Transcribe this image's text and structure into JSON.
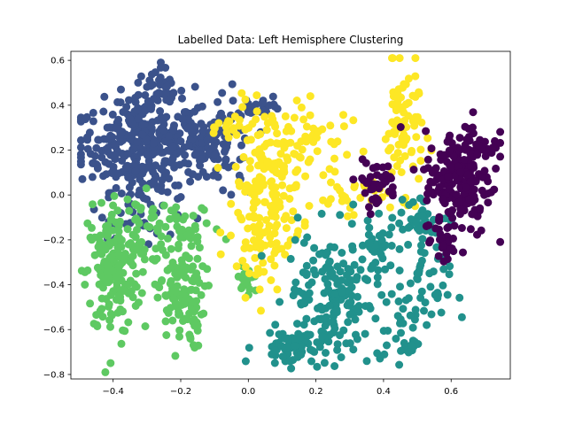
{
  "chart_data": {
    "type": "scatter",
    "title": "Labelled Data: Left Hemisphere Clustering",
    "xlabel": "",
    "ylabel": "",
    "xlim": [
      -0.525,
      0.775
    ],
    "ylim": [
      -0.82,
      0.64
    ],
    "x_ticks": [
      "−0.4",
      "−0.2",
      "0.0",
      "0.2",
      "0.4",
      "0.6"
    ],
    "x_tick_values": [
      -0.4,
      -0.2,
      0.0,
      0.2,
      0.4,
      0.6
    ],
    "y_ticks": [
      "−0.8",
      "−0.6",
      "−0.4",
      "−0.2",
      "0.0",
      "0.2",
      "0.4",
      "0.6"
    ],
    "y_tick_values": [
      -0.8,
      -0.6,
      -0.4,
      -0.2,
      0.0,
      0.2,
      0.4,
      0.6
    ],
    "grid": false,
    "legend": "none",
    "clusters": [
      {
        "color": "#3b528b",
        "regions": [
          {
            "cx": -0.32,
            "cy": 0.22,
            "sx": 0.09,
            "sy": 0.1,
            "n": 300
          },
          {
            "cx": -0.27,
            "cy": 0.45,
            "sx": 0.04,
            "sy": 0.06,
            "n": 50
          },
          {
            "cx": -0.14,
            "cy": 0.22,
            "sx": 0.04,
            "sy": 0.08,
            "n": 60
          },
          {
            "cx": -0.06,
            "cy": 0.2,
            "sx": 0.04,
            "sy": 0.12,
            "n": 50
          },
          {
            "cx": 0.04,
            "cy": 0.4,
            "sx": 0.03,
            "sy": 0.02,
            "n": 20
          },
          {
            "cx": -0.3,
            "cy": -0.05,
            "sx": 0.07,
            "sy": 0.07,
            "n": 40
          }
        ]
      },
      {
        "color": "#5ec962",
        "regions": [
          {
            "cx": -0.4,
            "cy": -0.35,
            "sx": 0.04,
            "sy": 0.14,
            "n": 160
          },
          {
            "cx": -0.33,
            "cy": -0.15,
            "sx": 0.05,
            "sy": 0.1,
            "n": 60
          },
          {
            "cx": -0.2,
            "cy": -0.45,
            "sx": 0.035,
            "sy": 0.12,
            "n": 120
          },
          {
            "cx": -0.18,
            "cy": -0.15,
            "sx": 0.05,
            "sy": 0.05,
            "n": 30
          },
          {
            "cx": 0.0,
            "cy": -0.38,
            "sx": 0.02,
            "sy": 0.04,
            "n": 20
          }
        ]
      },
      {
        "color": "#fde725",
        "regions": [
          {
            "cx": 0.06,
            "cy": 0.05,
            "sx": 0.05,
            "sy": 0.18,
            "n": 160
          },
          {
            "cx": 0.03,
            "cy": -0.18,
            "sx": 0.03,
            "sy": 0.08,
            "n": 40
          },
          {
            "cx": 0.2,
            "cy": 0.2,
            "sx": 0.07,
            "sy": 0.1,
            "n": 50
          },
          {
            "cx": 0.3,
            "cy": 0.0,
            "sx": 0.06,
            "sy": 0.04,
            "n": 30
          },
          {
            "cx": 0.46,
            "cy": 0.3,
            "sx": 0.03,
            "sy": 0.14,
            "n": 80
          },
          {
            "cx": -0.05,
            "cy": 0.3,
            "sx": 0.02,
            "sy": 0.04,
            "n": 15
          }
        ]
      },
      {
        "color": "#21918c",
        "regions": [
          {
            "cx": 0.25,
            "cy": -0.45,
            "sx": 0.07,
            "sy": 0.14,
            "n": 170
          },
          {
            "cx": 0.12,
            "cy": -0.68,
            "sx": 0.05,
            "sy": 0.04,
            "n": 60
          },
          {
            "cx": 0.52,
            "cy": -0.4,
            "sx": 0.04,
            "sy": 0.14,
            "n": 60
          },
          {
            "cx": 0.48,
            "cy": -0.1,
            "sx": 0.05,
            "sy": 0.05,
            "n": 30
          },
          {
            "cx": 0.38,
            "cy": -0.22,
            "sx": 0.03,
            "sy": 0.05,
            "n": 25
          },
          {
            "cx": 0.45,
            "cy": -0.65,
            "sx": 0.03,
            "sy": 0.06,
            "n": 25
          }
        ]
      },
      {
        "color": "#440154",
        "regions": [
          {
            "cx": 0.62,
            "cy": 0.05,
            "sx": 0.05,
            "sy": 0.12,
            "n": 180
          },
          {
            "cx": 0.68,
            "cy": 0.22,
            "sx": 0.03,
            "sy": 0.06,
            "n": 40
          },
          {
            "cx": 0.38,
            "cy": 0.05,
            "sx": 0.03,
            "sy": 0.05,
            "n": 40
          },
          {
            "cx": 0.58,
            "cy": -0.22,
            "sx": 0.02,
            "sy": 0.05,
            "n": 20
          }
        ]
      }
    ]
  }
}
